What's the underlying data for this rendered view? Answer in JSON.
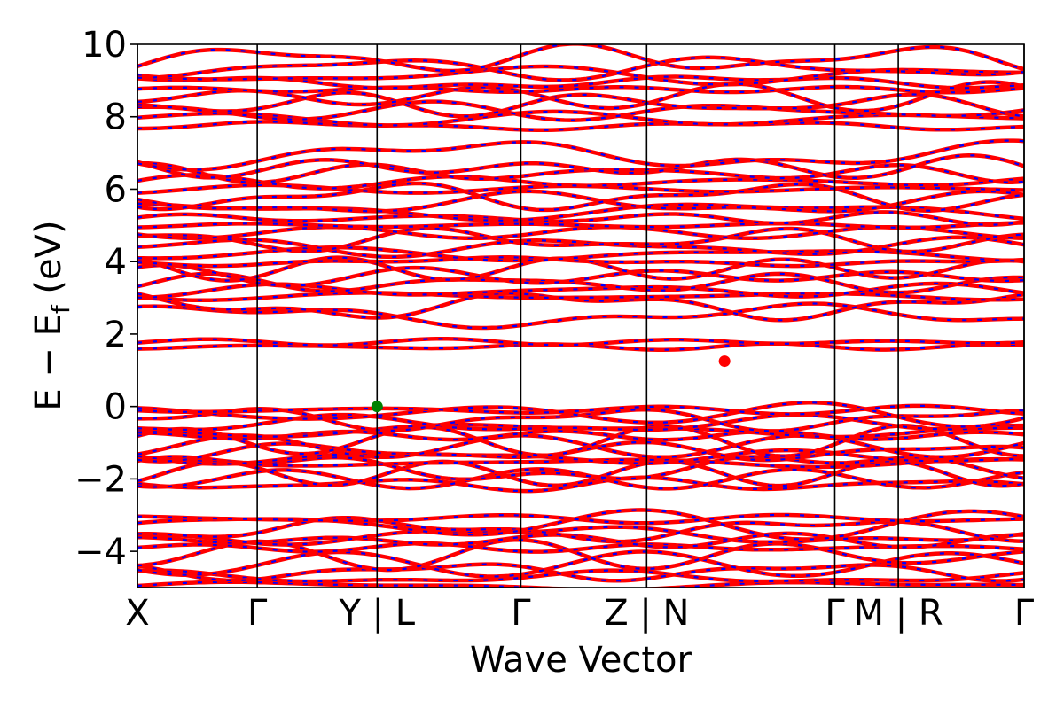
{
  "chart_data": {
    "type": "line",
    "title": "",
    "xlabel": "Wave Vector",
    "ylabel_parts": {
      "main": "E − E",
      "sub": "f",
      "unit": " (eV)"
    },
    "ylim": [
      -5,
      10
    ],
    "yticks": [
      10,
      8,
      6,
      4,
      2,
      0,
      -2,
      -4
    ],
    "ytick_labels": [
      "10",
      "8",
      "6",
      "4",
      "2",
      "0",
      "−2",
      "−4"
    ],
    "xlim": [
      0,
      7.4
    ],
    "kpoints": [
      {
        "label": "X",
        "x": 0
      },
      {
        "label": "Γ",
        "x": 1
      },
      {
        "label": "Y | L",
        "x": 2
      },
      {
        "label": "Γ",
        "x": 3.2
      },
      {
        "label": "Z | N",
        "x": 4.25
      },
      {
        "label": "Γ",
        "x": 5.82
      },
      {
        "label": "M | R",
        "x": 6.35
      },
      {
        "label": "Γ",
        "x": 7.4
      }
    ],
    "line_colors": {
      "primary": "#ff0000",
      "secondary": "#0000ff"
    },
    "band_levels": [
      -4.95,
      -4.72,
      -4.55,
      -4.35,
      -4.1,
      -3.9,
      -3.7,
      -3.55,
      -3.4,
      -3.25,
      -3.1,
      -2.15,
      -2.0,
      -1.85,
      -1.7,
      -1.55,
      -1.4,
      -1.25,
      -1.1,
      -0.95,
      -0.8,
      -0.65,
      -0.5,
      -0.35,
      -0.2,
      -0.1,
      1.65,
      1.78,
      2.5,
      2.8,
      3.05,
      3.2,
      3.4,
      3.6,
      3.8,
      4.0,
      4.2,
      4.4,
      4.6,
      4.8,
      5.0,
      5.2,
      5.4,
      5.6,
      5.8,
      6.0,
      6.2,
      6.45,
      6.6,
      6.95,
      7.75,
      7.95,
      8.15,
      8.35,
      8.55,
      8.75,
      8.95,
      9.15,
      9.35,
      9.6
    ],
    "markers": [
      {
        "name": "valence-band-maximum",
        "x": 2.0,
        "y": 0.0,
        "color": "#008000"
      },
      {
        "name": "conduction-band-minimum",
        "x": 4.9,
        "y": 1.25,
        "color": "#ff0000"
      }
    ]
  }
}
